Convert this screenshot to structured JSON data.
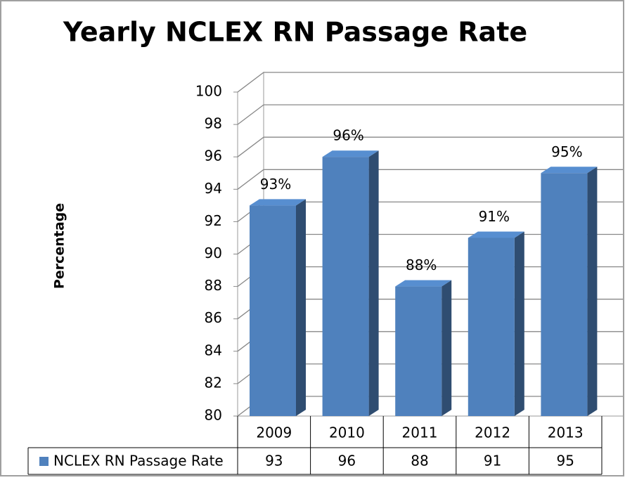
{
  "chart_data": {
    "type": "bar3d",
    "title": "Yearly NCLEX RN Passage Rate",
    "y_label": "Percentage",
    "categories": [
      "2009",
      "2010",
      "2011",
      "2012",
      "2013"
    ],
    "series": [
      {
        "name": "NCLEX RN Passage Rate",
        "color": "#4f81bd",
        "values": [
          93,
          96,
          88,
          91,
          95
        ],
        "value_labels": [
          "93%",
          "96%",
          "88%",
          "91%",
          "95%"
        ]
      }
    ],
    "ylim": [
      80,
      100
    ],
    "yticks": [
      80,
      82,
      84,
      86,
      88,
      90,
      92,
      94,
      96,
      98,
      100
    ],
    "grid": true,
    "data_table": true
  }
}
